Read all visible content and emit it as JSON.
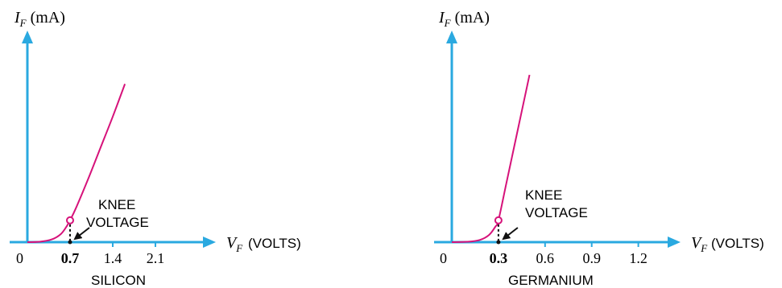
{
  "chart_data": [
    {
      "type": "line",
      "caption": "SILICON",
      "ylabel": {
        "main": "I",
        "sub": "F",
        "unit": "(mA)"
      },
      "xlabel": {
        "main": "V",
        "sub": "F",
        "unit": "(VOLTS)"
      },
      "origin_label": "0",
      "x_ticks": [
        {
          "value": 0.7,
          "label": "0.7",
          "style": "bold"
        },
        {
          "value": 1.4,
          "label": "1.4",
          "style": "normal"
        },
        {
          "value": 2.1,
          "label": "2.1",
          "style": "normal"
        }
      ],
      "knee": {
        "label_lines": [
          "KNEE",
          "VOLTAGE"
        ],
        "x": 0.7,
        "y": 0.12
      },
      "curve": [
        [
          0.0,
          0.0
        ],
        [
          0.2,
          0.002
        ],
        [
          0.4,
          0.015
        ],
        [
          0.55,
          0.045
        ],
        [
          0.65,
          0.09
        ],
        [
          0.7,
          0.12
        ],
        [
          0.8,
          0.19
        ],
        [
          1.0,
          0.35
        ],
        [
          1.2,
          0.52
        ],
        [
          1.4,
          0.69
        ],
        [
          1.6,
          0.87
        ]
      ],
      "xlim": [
        0,
        2.5
      ],
      "ylim": [
        0,
        1
      ],
      "color": "#d6127a",
      "axis_color": "#2aa9e0"
    },
    {
      "type": "line",
      "caption": "GERMANIUM",
      "ylabel": {
        "main": "I",
        "sub": "F",
        "unit": "(mA)"
      },
      "xlabel": {
        "main": "V",
        "sub": "F",
        "unit": "(VOLTS)"
      },
      "origin_label": "0",
      "x_ticks": [
        {
          "value": 0.3,
          "label": "0.3",
          "style": "bold"
        },
        {
          "value": 0.6,
          "label": "0.6",
          "style": "normal"
        },
        {
          "value": 0.9,
          "label": "0.9",
          "style": "normal"
        },
        {
          "value": 1.2,
          "label": "1.2",
          "style": "normal"
        }
      ],
      "knee": {
        "label_lines": [
          "KNEE",
          "VOLTAGE"
        ],
        "x": 0.3,
        "y": 0.12
      },
      "curve": [
        [
          0.0,
          0.0
        ],
        [
          0.1,
          0.002
        ],
        [
          0.18,
          0.012
        ],
        [
          0.24,
          0.04
        ],
        [
          0.28,
          0.085
        ],
        [
          0.3,
          0.12
        ],
        [
          0.35,
          0.32
        ],
        [
          0.4,
          0.52
        ],
        [
          0.45,
          0.72
        ],
        [
          0.5,
          0.92
        ]
      ],
      "xlim": [
        0,
        1.5
      ],
      "ylim": [
        0,
        1
      ],
      "color": "#d6127a",
      "axis_color": "#2aa9e0"
    }
  ]
}
